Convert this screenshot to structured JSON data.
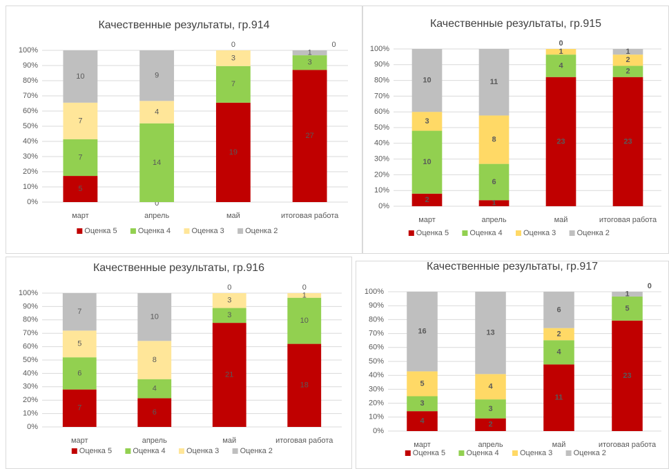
{
  "chart_data": [
    {
      "type": "bar",
      "stacking": "percent",
      "grid": true,
      "legend": "bottom",
      "title": "Качественные результаты, гр.914",
      "categories": [
        "март",
        "апрель",
        "май",
        "итоговая работа"
      ],
      "series": [
        {
          "name": "Оценка 5",
          "color": "#c00000",
          "values": [
            5,
            0,
            19,
            27
          ]
        },
        {
          "name": "Оценка 4",
          "color": "#92d050",
          "values": [
            7,
            14,
            7,
            3
          ]
        },
        {
          "name": "Оценка 3",
          "color": "#ffe699",
          "values": [
            7,
            4,
            3,
            0
          ]
        },
        {
          "name": "Оценка 2",
          "color": "#bfbfbf",
          "values": [
            10,
            9,
            0,
            1
          ]
        }
      ],
      "ylim": [
        0,
        100
      ],
      "yticks": [
        {
          "value": 0,
          "label": "0%"
        },
        {
          "value": 10,
          "label": "10%"
        },
        {
          "value": 20,
          "label": "20%"
        },
        {
          "value": 30,
          "label": "30%"
        },
        {
          "value": 40,
          "label": "40%"
        },
        {
          "value": 50,
          "label": "50%"
        },
        {
          "value": 60,
          "label": "60%"
        },
        {
          "value": 70,
          "label": "70%"
        },
        {
          "value": 80,
          "label": "80%"
        },
        {
          "value": 90,
          "label": "90%"
        },
        {
          "value": 100,
          "label": "100%"
        }
      ]
    },
    {
      "type": "bar",
      "stacking": "percent",
      "grid": true,
      "legend": "bottom",
      "title": "Качественные результаты, гр.915",
      "categories": [
        "март",
        "апрель",
        "май",
        "итоговая работа"
      ],
      "series": [
        {
          "name": "Оценка 5",
          "color": "#c00000",
          "values": [
            2,
            1,
            23,
            23
          ]
        },
        {
          "name": "Оценка 4",
          "color": "#92d050",
          "values": [
            10,
            6,
            4,
            2
          ]
        },
        {
          "name": "Оценка 3",
          "color": "#ffd966",
          "values": [
            3,
            8,
            1,
            2
          ]
        },
        {
          "name": "Оценка 2",
          "color": "#bfbfbf",
          "values": [
            10,
            11,
            0,
            1
          ]
        }
      ],
      "ylim": [
        0,
        100
      ],
      "yticks": [
        {
          "value": 0,
          "label": "0%"
        },
        {
          "value": 10,
          "label": "10%"
        },
        {
          "value": 20,
          "label": "20%"
        },
        {
          "value": 30,
          "label": "30%"
        },
        {
          "value": 40,
          "label": "40%"
        },
        {
          "value": 50,
          "label": "50%"
        },
        {
          "value": 60,
          "label": "60%"
        },
        {
          "value": 70,
          "label": "70%"
        },
        {
          "value": 80,
          "label": "80%"
        },
        {
          "value": 90,
          "label": "90%"
        },
        {
          "value": 100,
          "label": "100%"
        }
      ]
    },
    {
      "type": "bar",
      "stacking": "percent",
      "grid": true,
      "legend": "bottom",
      "title": "Качественные результаты, гр.916",
      "categories": [
        "март",
        "апрель",
        "май",
        "итоговая работа"
      ],
      "series": [
        {
          "name": "Оценка 5",
          "color": "#c00000",
          "values": [
            7,
            6,
            21,
            18
          ]
        },
        {
          "name": "Оценка 4",
          "color": "#92d050",
          "values": [
            6,
            4,
            3,
            10
          ]
        },
        {
          "name": "Оценка 3",
          "color": "#ffe699",
          "values": [
            5,
            8,
            3,
            1
          ]
        },
        {
          "name": "Оценка 2",
          "color": "#bfbfbf",
          "values": [
            7,
            10,
            0,
            0
          ]
        }
      ],
      "ylim": [
        0,
        100
      ],
      "yticks": [
        {
          "value": 0,
          "label": "0%"
        },
        {
          "value": 10,
          "label": "10%"
        },
        {
          "value": 20,
          "label": "20%"
        },
        {
          "value": 30,
          "label": "30%"
        },
        {
          "value": 40,
          "label": "40%"
        },
        {
          "value": 50,
          "label": "50%"
        },
        {
          "value": 60,
          "label": "60%"
        },
        {
          "value": 70,
          "label": "70%"
        },
        {
          "value": 80,
          "label": "80%"
        },
        {
          "value": 90,
          "label": "90%"
        },
        {
          "value": 100,
          "label": "100%"
        }
      ]
    },
    {
      "type": "bar",
      "stacking": "percent",
      "grid": true,
      "legend": "bottom",
      "title": "Качественные результаты, гр.917",
      "categories": [
        "март",
        "апрель",
        "май",
        "итоговая работа"
      ],
      "series": [
        {
          "name": "Оценка 5",
          "color": "#c00000",
          "values": [
            4,
            2,
            11,
            23
          ]
        },
        {
          "name": "Оценка 4",
          "color": "#92d050",
          "values": [
            3,
            3,
            4,
            5
          ]
        },
        {
          "name": "Оценка 3",
          "color": "#ffd966",
          "values": [
            5,
            4,
            2,
            0
          ]
        },
        {
          "name": "Оценка 2",
          "color": "#bfbfbf",
          "values": [
            16,
            13,
            6,
            1
          ]
        }
      ],
      "ylim": [
        0,
        100
      ],
      "yticks": [
        {
          "value": 0,
          "label": "0%"
        },
        {
          "value": 10,
          "label": "10%"
        },
        {
          "value": 20,
          "label": "20%"
        },
        {
          "value": 30,
          "label": "30%"
        },
        {
          "value": 40,
          "label": "40%"
        },
        {
          "value": 50,
          "label": "50%"
        },
        {
          "value": 60,
          "label": "60%"
        },
        {
          "value": 70,
          "label": "70%"
        },
        {
          "value": 80,
          "label": "80%"
        },
        {
          "value": 90,
          "label": "90%"
        },
        {
          "value": 100,
          "label": "100%"
        }
      ]
    }
  ]
}
